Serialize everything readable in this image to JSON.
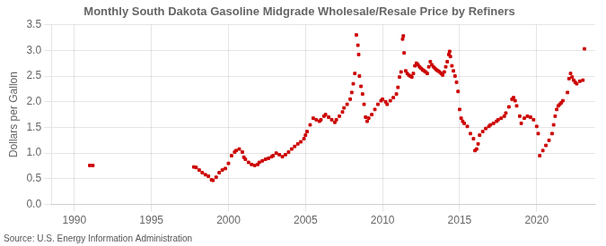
{
  "chart_data": {
    "type": "scatter",
    "title": "Monthly South Dakota Gasoline Midgrade Wholesale/Resale Price by Refiners",
    "ylabel": "Dollars per Gallon",
    "source": "Source: U.S. Energy Information Administration",
    "color": "#cc0000",
    "marker": "square",
    "grid": true,
    "xlim": [
      1988.5,
      2023.8
    ],
    "xticks": [
      1990,
      1995,
      2000,
      2005,
      2010,
      2015,
      2020
    ],
    "ylim": [
      0.0,
      3.5
    ],
    "yticks": [
      {
        "value": 0.0,
        "label": "0.0"
      },
      0.5,
      {
        "value": 1.0,
        "label": "1.0"
      },
      1.5,
      {
        "value": 2.0,
        "label": "2.0"
      },
      2.5,
      {
        "value": 3.0,
        "label": "3.0"
      },
      3.5
    ],
    "x": [
      1991.0,
      1991.2,
      1997.75,
      1997.9,
      1998.1,
      1998.3,
      1998.5,
      1998.7,
      1998.9,
      1999.0,
      1999.2,
      1999.4,
      1999.6,
      1999.8,
      2000.0,
      2000.2,
      2000.4,
      2000.5,
      2000.7,
      2000.9,
      2001.0,
      2001.1,
      2001.3,
      2001.5,
      2001.7,
      2001.9,
      2002.0,
      2002.2,
      2002.4,
      2002.6,
      2002.8,
      2002.9,
      2003.1,
      2003.3,
      2003.5,
      2003.7,
      2003.9,
      2004.1,
      2004.3,
      2004.5,
      2004.7,
      2004.9,
      2005.0,
      2005.1,
      2005.3,
      2005.5,
      2005.7,
      2005.9,
      2006.0,
      2006.2,
      2006.3,
      2006.5,
      2006.7,
      2006.9,
      2007.0,
      2007.2,
      2007.4,
      2007.5,
      2007.7,
      2007.9,
      2008.0,
      2008.1,
      2008.2,
      2008.3,
      2008.4,
      2008.45,
      2008.5,
      2008.6,
      2008.7,
      2008.8,
      2008.9,
      2009.0,
      2009.1,
      2009.3,
      2009.5,
      2009.7,
      2009.9,
      2010.0,
      2010.2,
      2010.3,
      2010.5,
      2010.7,
      2010.9,
      2011.0,
      2011.1,
      2011.2,
      2011.3,
      2011.35,
      2011.4,
      2011.5,
      2011.6,
      2011.7,
      2011.8,
      2011.9,
      2012.0,
      2012.1,
      2012.2,
      2012.3,
      2012.4,
      2012.5,
      2012.6,
      2012.7,
      2012.8,
      2012.9,
      2013.0,
      2013.1,
      2013.2,
      2013.3,
      2013.4,
      2013.5,
      2013.6,
      2013.7,
      2013.8,
      2013.9,
      2014.0,
      2014.1,
      2014.2,
      2014.3,
      2014.35,
      2014.4,
      2014.5,
      2014.6,
      2014.7,
      2014.8,
      2014.9,
      2015.0,
      2015.1,
      2015.2,
      2015.3,
      2015.5,
      2015.7,
      2015.9,
      2016.0,
      2016.1,
      2016.2,
      2016.3,
      2016.5,
      2016.7,
      2016.9,
      2017.0,
      2017.2,
      2017.4,
      2017.5,
      2017.7,
      2017.9,
      2018.0,
      2018.2,
      2018.4,
      2018.5,
      2018.6,
      2018.7,
      2018.9,
      2019.0,
      2019.2,
      2019.4,
      2019.6,
      2019.8,
      2020.0,
      2020.1,
      2020.2,
      2020.4,
      2020.6,
      2020.8,
      2021.0,
      2021.1,
      2021.2,
      2021.3,
      2021.4,
      2021.5,
      2021.6,
      2021.7,
      2022.0,
      2022.1,
      2022.2,
      2022.3,
      2022.4,
      2022.5,
      2022.6,
      2022.8,
      2023.0,
      2023.1
    ],
    "values": [
      0.76,
      0.76,
      0.73,
      0.72,
      0.67,
      0.62,
      0.58,
      0.55,
      0.48,
      0.47,
      0.53,
      0.62,
      0.67,
      0.7,
      0.8,
      0.95,
      1.02,
      1.05,
      1.08,
      1.02,
      0.92,
      0.88,
      0.82,
      0.78,
      0.76,
      0.78,
      0.82,
      0.85,
      0.88,
      0.9,
      0.93,
      0.95,
      1.0,
      0.97,
      0.93,
      0.97,
      1.02,
      1.08,
      1.13,
      1.18,
      1.22,
      1.28,
      1.35,
      1.42,
      1.55,
      1.68,
      1.65,
      1.62,
      1.65,
      1.72,
      1.75,
      1.7,
      1.65,
      1.6,
      1.65,
      1.72,
      1.8,
      1.88,
      1.95,
      2.05,
      2.18,
      2.35,
      2.55,
      3.3,
      3.1,
      2.92,
      2.5,
      2.3,
      2.15,
      1.95,
      1.7,
      1.62,
      1.68,
      1.75,
      1.85,
      1.95,
      2.02,
      2.05,
      2.0,
      1.95,
      2.02,
      2.08,
      2.15,
      2.28,
      2.48,
      2.58,
      3.22,
      3.28,
      2.95,
      2.6,
      2.55,
      2.52,
      2.5,
      2.48,
      2.55,
      2.7,
      2.75,
      2.72,
      2.68,
      2.65,
      2.62,
      2.6,
      2.58,
      2.55,
      2.68,
      2.78,
      2.72,
      2.68,
      2.65,
      2.62,
      2.6,
      2.58,
      2.55,
      2.52,
      2.58,
      2.68,
      2.78,
      2.92,
      2.98,
      2.88,
      2.7,
      2.6,
      2.5,
      2.38,
      2.2,
      1.85,
      1.68,
      1.62,
      1.58,
      1.52,
      1.38,
      1.28,
      1.05,
      1.08,
      1.18,
      1.35,
      1.42,
      1.48,
      1.52,
      1.55,
      1.58,
      1.62,
      1.65,
      1.68,
      1.72,
      1.78,
      1.9,
      2.05,
      2.08,
      2.02,
      1.92,
      1.72,
      1.58,
      1.68,
      1.72,
      1.7,
      1.65,
      1.52,
      1.38,
      0.95,
      1.05,
      1.15,
      1.25,
      1.38,
      1.55,
      1.72,
      1.85,
      1.92,
      1.95,
      1.98,
      2.02,
      2.18,
      2.45,
      2.55,
      2.48,
      2.42,
      2.38,
      2.35,
      2.4,
      2.42,
      3.03
    ]
  }
}
